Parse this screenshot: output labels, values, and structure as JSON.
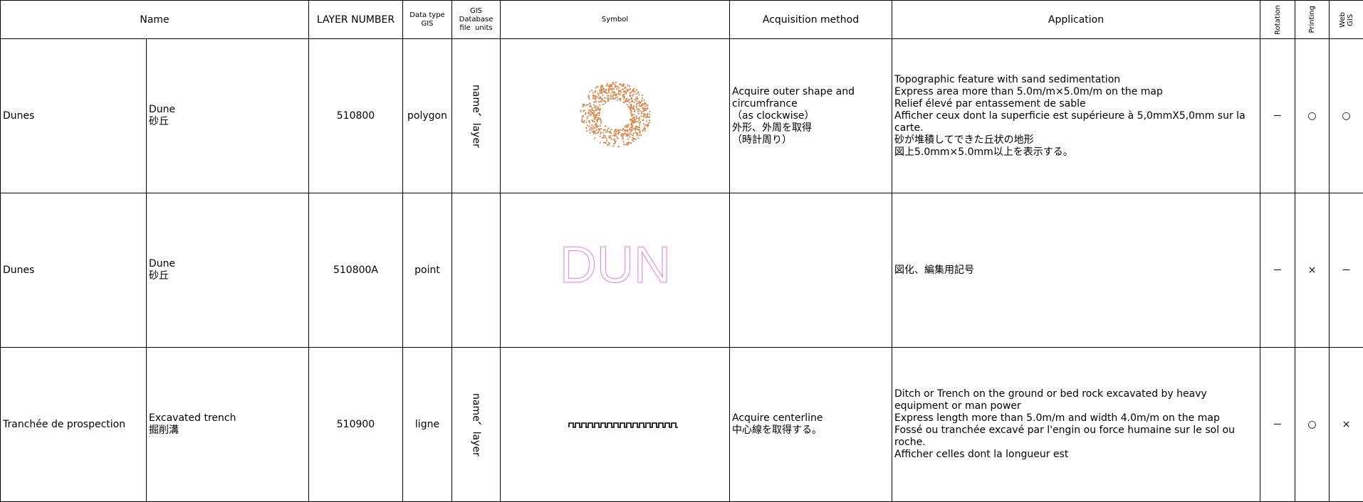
{
  "header": {
    "name": "Name",
    "layer_number": "LAYER NUMBER",
    "data_type": [
      "Data type",
      "GIS"
    ],
    "gis_units": [
      "GIS",
      "Database",
      "file  units"
    ],
    "symbol": "Symbol",
    "acquisition": "Acquisition method",
    "application": "Application",
    "rotation": "Rotation",
    "printing": "Printing",
    "web_gis": [
      "Web",
      "GIS"
    ]
  },
  "rows": [
    {
      "name": "Dunes",
      "name_detail": [
        "Dune",
        "砂丘"
      ],
      "layer_number": "510800",
      "data_type": "polygon",
      "units": "name、layer",
      "acquisition": [
        "Acquire outer shape and",
        "circumfrance",
        "（as clockwise）",
        "外形、外周を取得",
        "（時計周り）"
      ],
      "application": [
        "Topographic feature with sand sedimentation",
        "Express area more than 5.0m/m×5.0m/m on the map",
        "Relief élevé par entassement de sable",
        "Afficher ceux dont la superficie est supérieure à 5,0mmX5,0mm sur la",
        "carte.",
        "砂が堆積してできた丘状の地形",
        "図上5.0mm×5.0mm以上を表示する。"
      ],
      "rotation": "－",
      "printing": "○",
      "web_gis": "○"
    },
    {
      "name": "Dunes",
      "name_detail": [
        "Dune",
        "砂丘"
      ],
      "layer_number": "510800A",
      "data_type": "point",
      "symbol_text": "DUN",
      "application": [
        "図化、編集用記号"
      ],
      "rotation": "－",
      "printing": "×",
      "web_gis": "－"
    },
    {
      "name": "Tranchée de prospection",
      "name_detail": [
        "Excavated trench",
        "掘削溝"
      ],
      "layer_number": "510900",
      "data_type": "ligne",
      "units": "name、layer",
      "acquisition": [
        "Acquire centerline",
        "中心線を取得する。"
      ],
      "application": [
        "Ditch or Trench on the ground or bed rock excavated by heavy",
        "equipment or man power",
        "Express length more than 5.0m/m and width 4.0m/m on the map",
        "Fossé ou tranchée excavé par l'engin ou force humaine sur le sol ou",
        "roche.",
        "Afficher celles dont la longueur est"
      ],
      "rotation": "－",
      "printing": "○",
      "web_gis": "×"
    }
  ]
}
